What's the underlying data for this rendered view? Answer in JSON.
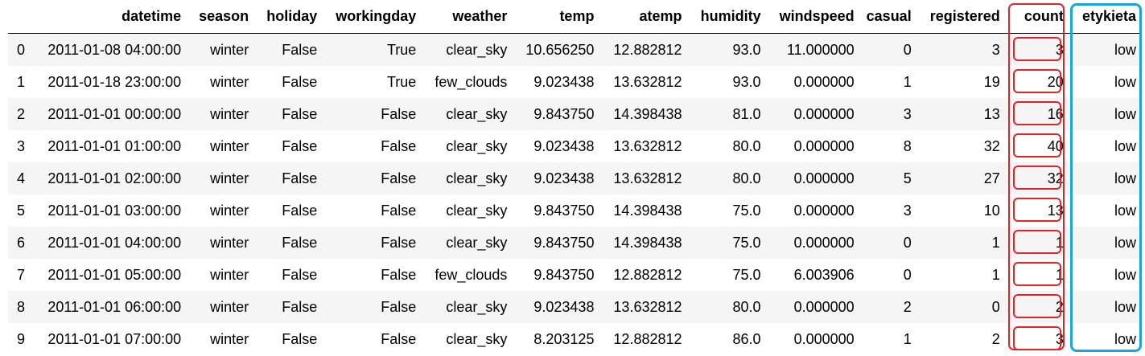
{
  "columns": [
    "",
    "datetime",
    "season",
    "holiday",
    "workingday",
    "weather",
    "temp",
    "atemp",
    "humidity",
    "windspeed",
    "casual",
    "registered",
    "count",
    "etykieta"
  ],
  "rows": [
    [
      "0",
      "2011-01-08 04:00:00",
      "winter",
      "False",
      "True",
      "clear_sky",
      "10.656250",
      "12.882812",
      "93.0",
      "11.000000",
      "0",
      "3",
      "3",
      "low"
    ],
    [
      "1",
      "2011-01-18 23:00:00",
      "winter",
      "False",
      "True",
      "few_clouds",
      "9.023438",
      "13.632812",
      "93.0",
      "0.000000",
      "1",
      "19",
      "20",
      "low"
    ],
    [
      "2",
      "2011-01-01 00:00:00",
      "winter",
      "False",
      "False",
      "clear_sky",
      "9.843750",
      "14.398438",
      "81.0",
      "0.000000",
      "3",
      "13",
      "16",
      "low"
    ],
    [
      "3",
      "2011-01-01 01:00:00",
      "winter",
      "False",
      "False",
      "clear_sky",
      "9.023438",
      "13.632812",
      "80.0",
      "0.000000",
      "8",
      "32",
      "40",
      "low"
    ],
    [
      "4",
      "2011-01-01 02:00:00",
      "winter",
      "False",
      "False",
      "clear_sky",
      "9.023438",
      "13.632812",
      "80.0",
      "0.000000",
      "5",
      "27",
      "32",
      "low"
    ],
    [
      "5",
      "2011-01-01 03:00:00",
      "winter",
      "False",
      "False",
      "clear_sky",
      "9.843750",
      "14.398438",
      "75.0",
      "0.000000",
      "3",
      "10",
      "13",
      "low"
    ],
    [
      "6",
      "2011-01-01 04:00:00",
      "winter",
      "False",
      "False",
      "clear_sky",
      "9.843750",
      "14.398438",
      "75.0",
      "0.000000",
      "0",
      "1",
      "1",
      "low"
    ],
    [
      "7",
      "2011-01-01 05:00:00",
      "winter",
      "False",
      "False",
      "few_clouds",
      "9.843750",
      "12.882812",
      "75.0",
      "6.003906",
      "0",
      "1",
      "1",
      "low"
    ],
    [
      "8",
      "2011-01-01 06:00:00",
      "winter",
      "False",
      "False",
      "clear_sky",
      "9.023438",
      "13.632812",
      "80.0",
      "0.000000",
      "2",
      "0",
      "2",
      "low"
    ],
    [
      "9",
      "2011-01-01 07:00:00",
      "winter",
      "False",
      "False",
      "clear_sky",
      "8.203125",
      "12.882812",
      "86.0",
      "0.000000",
      "1",
      "2",
      "3",
      "low"
    ]
  ],
  "highlight_colors": {
    "count": "#e32424",
    "etykieta": "#1aa6dd"
  }
}
